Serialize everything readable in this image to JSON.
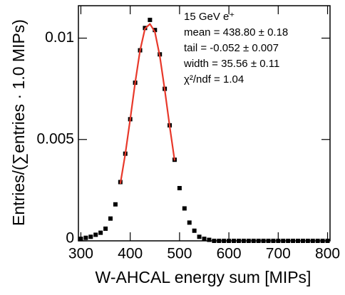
{
  "chart_data": {
    "type": "scatter",
    "x_label": "W-AHCAL energy sum [MIPs]",
    "y_label": "Entries/(∑entries · 1.0 MIPs)",
    "annotations": [
      "15 GeV e⁺",
      "mean = 438.80 ± 0.18",
      "tail  = -0.052 ± 0.007",
      "width = 35.56 ± 0.11",
      "χ²/ndf = 1.04"
    ],
    "xlim": [
      295,
      805
    ],
    "xticks": [
      300,
      400,
      500,
      600,
      700,
      800
    ],
    "ylim": [
      0,
      0.0116
    ],
    "yticks": [
      0,
      0.005,
      0.01
    ],
    "series": [
      {
        "style": "markers",
        "color": "#000000",
        "x": [
          300,
          310,
          320,
          330,
          340,
          350,
          360,
          370,
          380,
          390,
          400,
          410,
          420,
          430,
          440,
          450,
          460,
          470,
          480,
          490,
          500,
          510,
          520,
          530,
          540,
          550,
          560,
          570,
          580,
          590,
          600,
          610,
          620,
          630,
          640,
          650,
          660,
          670,
          680,
          690,
          700,
          710,
          720,
          730,
          740,
          750,
          760,
          770,
          780,
          790,
          800
        ],
        "values": [
          0.0001,
          0.00015,
          0.0002,
          0.0003,
          0.0004,
          0.0006,
          0.0011,
          0.0018,
          0.0029,
          0.0043,
          0.006,
          0.0078,
          0.0094,
          0.0105,
          0.0109,
          0.0104,
          0.0092,
          0.0075,
          0.0057,
          0.004,
          0.0026,
          0.0016,
          0.0009,
          0.0005,
          0.0002,
          0.0001,
          5e-05,
          0,
          0,
          0,
          0,
          0,
          0,
          0,
          0,
          0,
          0,
          0,
          0,
          0,
          0,
          0,
          0,
          0,
          0,
          0,
          0,
          0,
          0,
          0,
          0
        ]
      },
      {
        "style": "line",
        "color": "#e8382a",
        "x": [
          380,
          390,
          400,
          410,
          420,
          430,
          440,
          450,
          460,
          470,
          480,
          490
        ],
        "values": [
          0.00282,
          0.00428,
          0.006,
          0.0078,
          0.0094,
          0.01047,
          0.0107,
          0.01031,
          0.00911,
          0.00745,
          0.00565,
          0.00396
        ]
      }
    ]
  }
}
